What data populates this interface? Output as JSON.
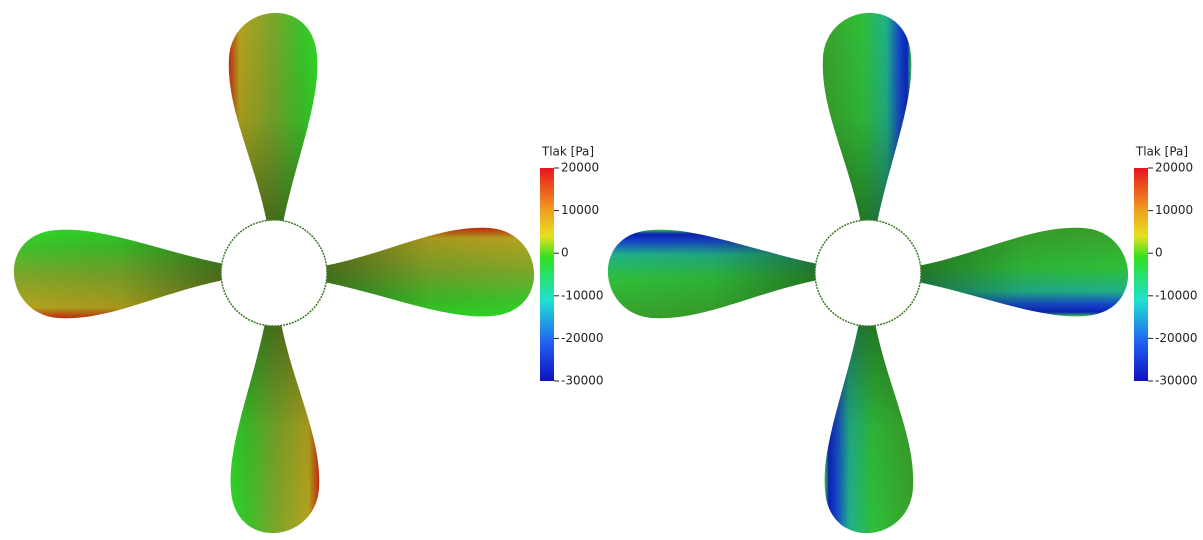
{
  "panels": [
    {
      "colorbar": {
        "title": "Tlak [Pa]",
        "lim": [
          -30000,
          20000
        ],
        "ticks": [
          20000,
          10000,
          0,
          -10000,
          -20000,
          -30000
        ]
      }
    },
    {
      "colorbar": {
        "title": "Tlak [Pa]",
        "lim": [
          -30000,
          20000
        ],
        "ticks": [
          20000,
          10000,
          0,
          -10000,
          -20000,
          -30000
        ]
      }
    }
  ]
}
